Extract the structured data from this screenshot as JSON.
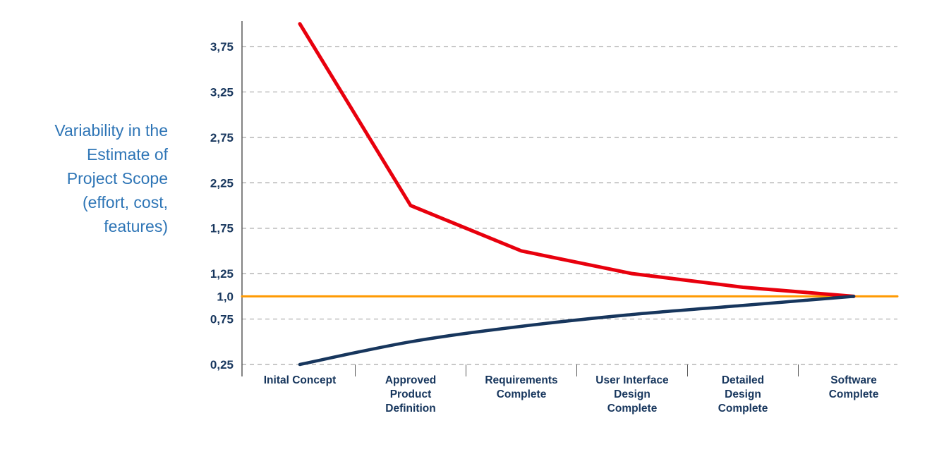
{
  "side_label": {
    "lines": [
      "Variability in the",
      "Estimate of",
      "Project Scope",
      "(effort, cost,",
      "features)"
    ],
    "color": "#2e75b6"
  },
  "colors": {
    "upper_line": "#e8000d",
    "lower_line": "#17365d",
    "baseline_line": "#ff9900",
    "gridline": "#a6a6a6",
    "axis": "#595959",
    "tick_text": "#17365d",
    "category_text": "#17365d"
  },
  "chart_data": {
    "type": "line",
    "title": "",
    "xlabel": "",
    "ylabel": "Variability in the Estimate of Project Scope (effort, cost, features)",
    "categories": [
      "Inital Concept",
      "Approved Product Definition",
      "Requirements Complete",
      "User Interface Design Complete",
      "Detailed Design Complete",
      "Software Complete"
    ],
    "category_label_lines": [
      [
        "Inital Concept"
      ],
      [
        "Approved",
        "Product",
        "Definition"
      ],
      [
        "Requirements",
        "Complete"
      ],
      [
        "User Interface",
        "Design",
        "Complete"
      ],
      [
        "Detailed",
        "Design",
        "Complete"
      ],
      [
        "Software",
        "Complete"
      ]
    ],
    "series": [
      {
        "name": "upper-estimate-bound",
        "color_key": "upper_line",
        "values": [
          4.0,
          2.0,
          1.5,
          1.25,
          1.1,
          1.0
        ],
        "width": 5,
        "smooth": false
      },
      {
        "name": "lower-estimate-bound",
        "color_key": "lower_line",
        "values": [
          0.25,
          0.5,
          0.67,
          0.8,
          0.9,
          1.0
        ],
        "width": 4.5,
        "smooth": true
      }
    ],
    "baseline": {
      "name": "estimate-baseline",
      "value": 1.0,
      "color_key": "baseline_line",
      "width": 3,
      "span": "full"
    },
    "y_ticks": [
      {
        "value": 3.75,
        "label": "3,75"
      },
      {
        "value": 3.25,
        "label": "3,25"
      },
      {
        "value": 2.75,
        "label": "2,75"
      },
      {
        "value": 2.25,
        "label": "2,25"
      },
      {
        "value": 1.75,
        "label": "1,75"
      },
      {
        "value": 1.25,
        "label": "1,25"
      },
      {
        "value": 1.0,
        "label": "1,0"
      },
      {
        "value": 0.75,
        "label": "0,75"
      },
      {
        "value": 0.25,
        "label": "0,25"
      }
    ],
    "gridline_values": [
      3.75,
      3.25,
      2.75,
      2.25,
      1.75,
      1.25,
      0.75,
      0.25
    ],
    "ylim": [
      0.25,
      4.0
    ],
    "grid": "dashed-horizontal",
    "legend": "none"
  }
}
